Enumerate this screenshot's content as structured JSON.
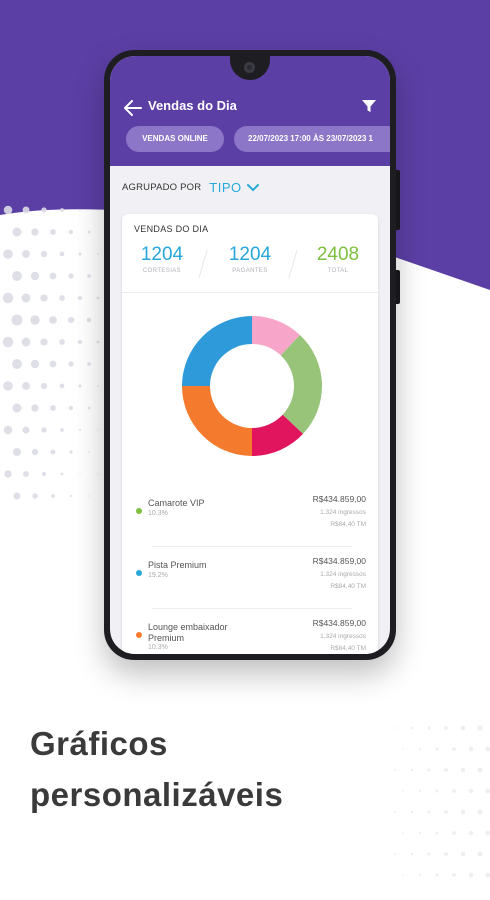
{
  "colors": {
    "purple": "#5c3fa5",
    "blue": "#27a8d8",
    "green": "#7ec03f",
    "orange": "#f47b2e",
    "pink": "#f7a6c9",
    "magenta": "#e0155e",
    "sage": "#98c47a",
    "donut_blue": "#2e9ad9"
  },
  "header": {
    "title": "Vendas do Dia",
    "chip_online": "VENDAS ONLINE",
    "chip_date": "22/07/2023 17:00 ÀS 23/07/2023 1"
  },
  "group": {
    "label": "AGRUPADO POR",
    "value": "TIPO"
  },
  "card": {
    "title": "VENDAS DO DIA",
    "stats": [
      {
        "value": "1204",
        "label": "CORTESIAS"
      },
      {
        "value": "1204",
        "label": "PAGANTES"
      },
      {
        "value": "2408",
        "label": "TOTAL"
      }
    ]
  },
  "chart_data": {
    "type": "pie",
    "categories": [
      "pink",
      "sage",
      "magenta",
      "orange",
      "blue"
    ],
    "values": [
      12,
      25,
      13,
      25,
      25
    ]
  },
  "legend": [
    {
      "name": "Camarote VIP",
      "pct": "10.3%",
      "amount": "R$434.859,00",
      "tickets": "1.324 ingressos",
      "tm": "R$84,40 TM",
      "color": "#7ec03f"
    },
    {
      "name": "Pista Premium",
      "pct": "19.2%",
      "amount": "R$434.859,00",
      "tickets": "1.324 ingressos",
      "tm": "R$84,40 TM",
      "color": "#27a8d8"
    },
    {
      "name": "Lounge embaixador Premium",
      "pct": "10.3%",
      "amount": "R$434.859,00",
      "tickets": "1.324 ingressos",
      "tm": "R$84,40 TM",
      "color": "#f47b2e"
    }
  ],
  "headline": {
    "line1": "Gráficos",
    "line2": "personalizáveis"
  }
}
